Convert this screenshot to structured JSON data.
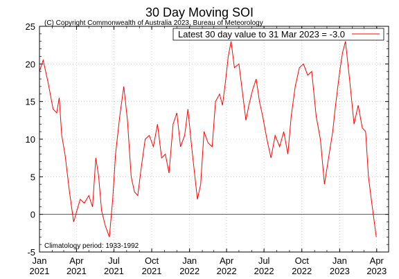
{
  "chart_data": {
    "type": "line",
    "title": "30 Day Moving SOI",
    "subtitle": "(C) Copyright Commonwealth of Australia 2023, Bureau of Meteorology",
    "annotation": "Climatology period: 1933-1992",
    "xlabel": "",
    "ylabel": "",
    "ylim": [
      -5,
      25
    ],
    "yticks": [
      -5,
      0,
      5,
      10,
      15,
      20,
      25
    ],
    "xlim": [
      "2021-01-01",
      "2023-04-30"
    ],
    "xticks": [
      {
        "date": "2021-01-01",
        "month": "Jan",
        "year": "2021"
      },
      {
        "date": "2021-04-01",
        "month": "Apr",
        "year": "2021"
      },
      {
        "date": "2021-07-01",
        "month": "Jul",
        "year": "2021"
      },
      {
        "date": "2021-10-01",
        "month": "Oct",
        "year": "2021"
      },
      {
        "date": "2022-01-01",
        "month": "Jan",
        "year": "2022"
      },
      {
        "date": "2022-04-01",
        "month": "Apr",
        "year": "2022"
      },
      {
        "date": "2022-07-01",
        "month": "Jul",
        "year": "2022"
      },
      {
        "date": "2022-10-01",
        "month": "Oct",
        "year": "2022"
      },
      {
        "date": "2023-01-01",
        "month": "Jan",
        "year": "2023"
      },
      {
        "date": "2023-04-01",
        "month": "Apr",
        "year": "2023"
      }
    ],
    "zero_line": true,
    "legend_position": "top-right",
    "series": [
      {
        "name": "Latest 30 day value to 31 Mar 2023 = -3.0",
        "color": "#ff0000",
        "x": [
          "2021-01-01",
          "2021-01-10",
          "2021-01-22",
          "2021-02-03",
          "2021-02-12",
          "2021-02-18",
          "2021-02-24",
          "2021-03-04",
          "2021-03-15",
          "2021-03-25",
          "2021-04-02",
          "2021-04-10",
          "2021-04-20",
          "2021-05-01",
          "2021-05-10",
          "2021-05-18",
          "2021-05-25",
          "2021-06-01",
          "2021-06-10",
          "2021-06-20",
          "2021-06-28",
          "2021-07-05",
          "2021-07-15",
          "2021-07-25",
          "2021-08-03",
          "2021-08-12",
          "2021-08-20",
          "2021-08-28",
          "2021-09-05",
          "2021-09-15",
          "2021-09-25",
          "2021-10-05",
          "2021-10-15",
          "2021-10-25",
          "2021-11-03",
          "2021-11-12",
          "2021-11-22",
          "2021-12-01",
          "2021-12-10",
          "2021-12-20",
          "2021-12-28",
          "2022-01-05",
          "2022-01-12",
          "2022-01-20",
          "2022-01-28",
          "2022-02-05",
          "2022-02-15",
          "2022-02-25",
          "2022-03-05",
          "2022-03-15",
          "2022-03-22",
          "2022-03-29",
          "2022-04-05",
          "2022-04-12",
          "2022-04-20",
          "2022-05-01",
          "2022-05-10",
          "2022-05-18",
          "2022-05-25",
          "2022-06-03",
          "2022-06-12",
          "2022-06-20",
          "2022-06-28",
          "2022-07-08",
          "2022-07-18",
          "2022-07-28",
          "2022-08-08",
          "2022-08-18",
          "2022-08-28",
          "2022-09-05",
          "2022-09-15",
          "2022-09-25",
          "2022-10-05",
          "2022-10-15",
          "2022-10-25",
          "2022-11-05",
          "2022-11-15",
          "2022-11-25",
          "2022-12-05",
          "2022-12-15",
          "2022-12-22",
          "2023-01-01",
          "2023-01-08",
          "2023-01-15",
          "2023-01-25",
          "2023-02-05",
          "2023-02-15",
          "2023-02-25",
          "2023-03-05",
          "2023-03-12",
          "2023-03-20",
          "2023-03-31"
        ],
        "values": [
          19.0,
          20.5,
          17.5,
          14.0,
          13.5,
          15.5,
          10.5,
          8.0,
          3.0,
          -1.0,
          0.5,
          2.0,
          1.5,
          2.5,
          1.0,
          7.5,
          5.0,
          0.5,
          -1.5,
          -3.0,
          2.0,
          8.0,
          13.0,
          17.0,
          12.5,
          5.0,
          3.0,
          2.5,
          6.0,
          10.0,
          10.5,
          9.0,
          12.0,
          7.5,
          8.0,
          5.5,
          12.0,
          13.5,
          9.0,
          10.5,
          14.0,
          9.5,
          6.0,
          2.0,
          4.0,
          11.0,
          9.5,
          9.0,
          15.0,
          16.0,
          14.5,
          17.5,
          21.0,
          23.0,
          19.5,
          20.0,
          16.0,
          12.5,
          14.5,
          16.5,
          18.0,
          15.0,
          13.0,
          10.0,
          7.5,
          10.5,
          9.0,
          11.0,
          8.0,
          13.0,
          17.0,
          19.5,
          20.0,
          18.5,
          19.0,
          13.0,
          10.0,
          4.0,
          7.5,
          11.0,
          14.5,
          19.0,
          21.5,
          23.0,
          18.0,
          12.0,
          14.5,
          11.5,
          11.0,
          5.0,
          1.5,
          -3.0
        ]
      }
    ]
  }
}
